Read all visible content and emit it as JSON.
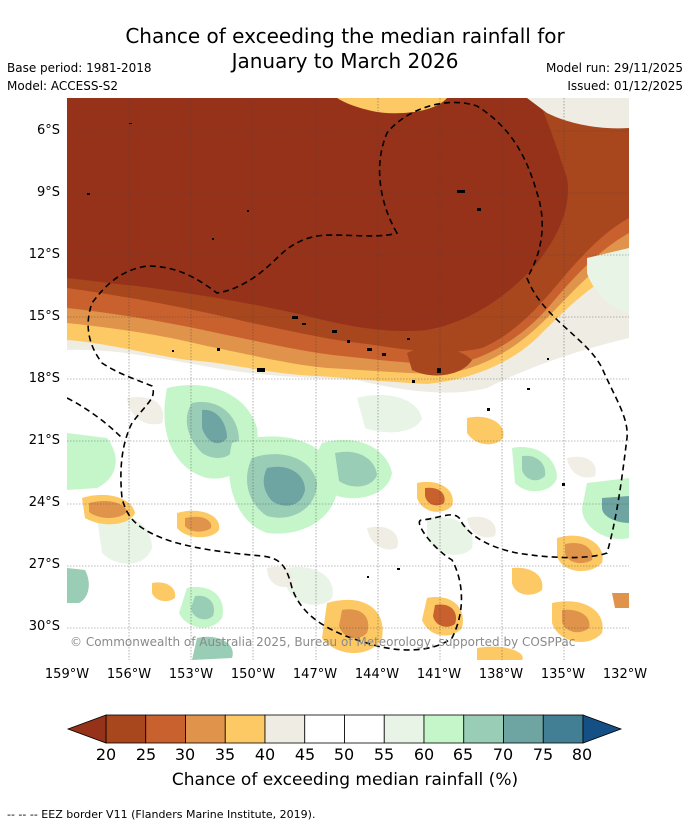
{
  "header": {
    "title_line1": "Chance of exceeding the median rainfall for",
    "title_line2": "January to March 2026",
    "base_period": "Base period: 1981-2018",
    "model": "Model: ACCESS-S2",
    "model_run": "Model run: 29/11/2025",
    "issued": "Issued: 01/12/2025"
  },
  "map": {
    "lat_labels": [
      "6°S",
      "9°S",
      "12°S",
      "15°S",
      "18°S",
      "21°S",
      "24°S",
      "27°S",
      "30°S"
    ],
    "lon_labels": [
      "159°W",
      "156°W",
      "153°W",
      "150°W",
      "147°W",
      "144°W",
      "141°W",
      "138°W",
      "135°W",
      "132°W"
    ],
    "copyright": "© Commonwealth of Australia 2025, Bureau of Meteorology, supported by COSPPac",
    "eez_border_style": "dashed black",
    "gridlines": true
  },
  "colorbar": {
    "label": "Chance of exceeding median rainfall (%)",
    "ticks": [
      "20",
      "25",
      "30",
      "35",
      "40",
      "45",
      "50",
      "55",
      "60",
      "65",
      "70",
      "75",
      "80"
    ],
    "colors": [
      "#a8461e",
      "#c8612d",
      "#e0934a",
      "#fdc965",
      "#efece3",
      "#ffffff",
      "#ffffff",
      "#e8f5e6",
      "#c5f6c9",
      "#9acdb5",
      "#6ea5a3",
      "#437f94"
    ],
    "low_extend_color": "#963219",
    "high_extend_color": "#144f85"
  },
  "footnote": "-- -- -- EEZ border V11 (Flanders Marine Institute, 2019)."
}
